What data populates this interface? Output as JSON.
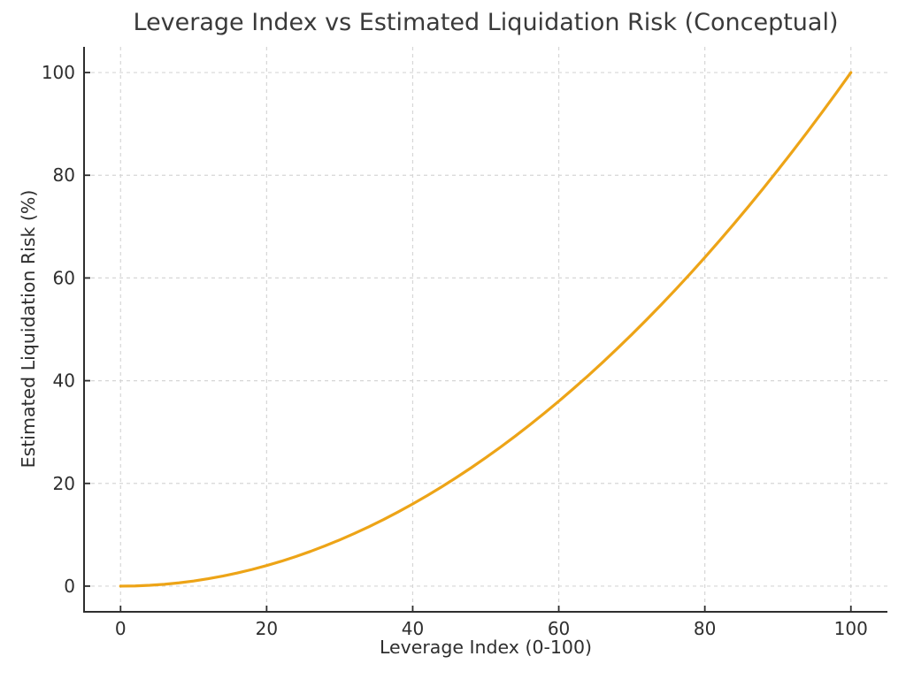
{
  "page": {
    "background": "#ffffff"
  },
  "style": {
    "title_color": "#3a3a3a",
    "axis_color": "#2e2e2e",
    "tick_label_color": "#2e2e2e",
    "grid_color": "#d6d6d6",
    "plot_background": "#ffffff",
    "accent": "#EDA417"
  },
  "chart_data": {
    "type": "line",
    "title": "Leverage Index vs Estimated Liquidation Risk (Conceptual)",
    "xlabel": "Leverage Index (0-100)",
    "ylabel": "Estimated Liquidation Risk (%)",
    "xlim": [
      -5,
      105
    ],
    "ylim": [
      -5,
      105
    ],
    "xticks": [
      0,
      20,
      40,
      60,
      80,
      100
    ],
    "yticks": [
      0,
      20,
      40,
      60,
      80,
      100
    ],
    "grid": true,
    "grid_linestyle": "dashed",
    "legend_position": "none",
    "spines": [
      "left",
      "bottom"
    ],
    "tick_direction": "in",
    "series": [
      {
        "name": "Estimated Liquidation Risk",
        "color": "#EDA417",
        "line_width": 3.2,
        "x": [
          0,
          2,
          4,
          6,
          8,
          10,
          12,
          14,
          16,
          18,
          20,
          22,
          24,
          26,
          28,
          30,
          32,
          34,
          36,
          38,
          40,
          42,
          44,
          46,
          48,
          50,
          52,
          54,
          56,
          58,
          60,
          62,
          64,
          66,
          68,
          70,
          72,
          74,
          76,
          78,
          80,
          82,
          84,
          86,
          88,
          90,
          92,
          94,
          96,
          98,
          100
        ],
        "y": [
          0,
          0.04,
          0.16,
          0.36,
          0.64,
          1,
          1.44,
          1.96,
          2.56,
          3.24,
          4,
          4.84,
          5.76,
          6.76,
          7.84,
          9,
          10.24,
          11.56,
          12.96,
          14.44,
          16,
          17.64,
          19.36,
          21.16,
          23.04,
          25,
          27.04,
          29.16,
          31.36,
          33.64,
          36,
          38.44,
          40.96,
          43.56,
          46.24,
          49,
          51.84,
          54.76,
          57.76,
          60.84,
          64,
          67.24,
          70.56,
          73.96,
          77.44,
          81,
          84.64,
          88.36,
          92.16,
          96.04,
          100
        ]
      }
    ]
  }
}
